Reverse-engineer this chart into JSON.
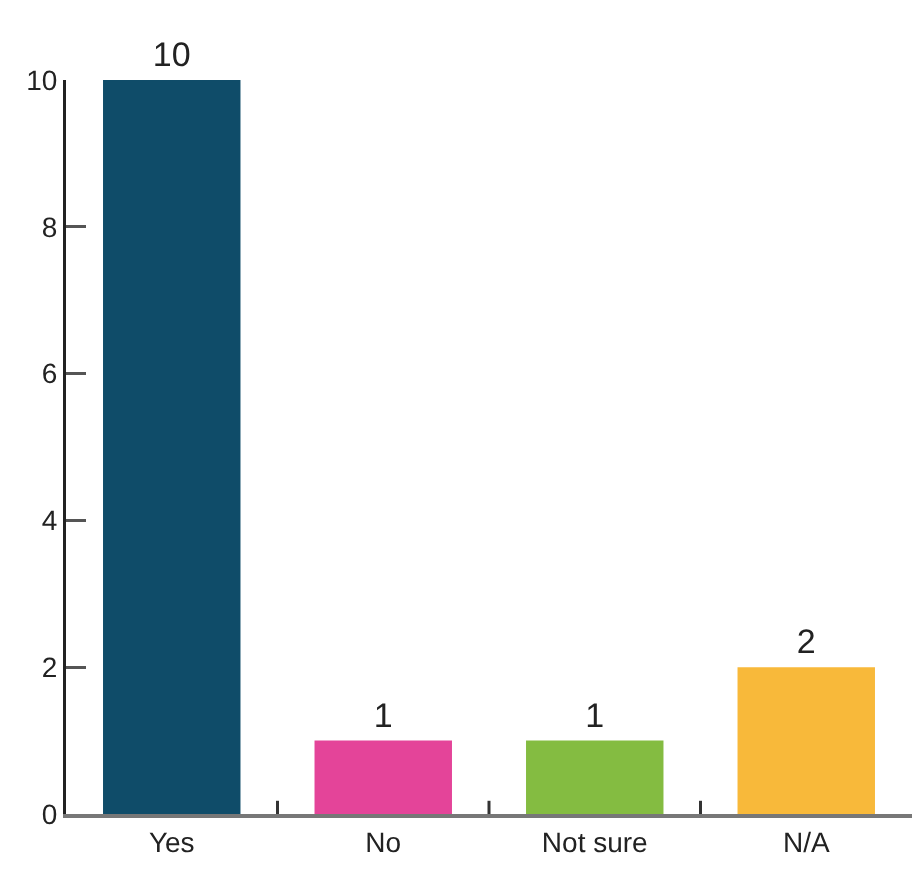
{
  "chart_data": {
    "type": "bar",
    "categories": [
      "Yes",
      "No",
      "Not sure",
      "N/A"
    ],
    "values": [
      10,
      1,
      1,
      2
    ],
    "colors": [
      "#0f4c69",
      "#e44499",
      "#84bc41",
      "#f8b93a"
    ],
    "ylim": [
      0,
      10
    ],
    "yticks": [
      0,
      2,
      4,
      6,
      8,
      10
    ],
    "data_labels": true
  }
}
